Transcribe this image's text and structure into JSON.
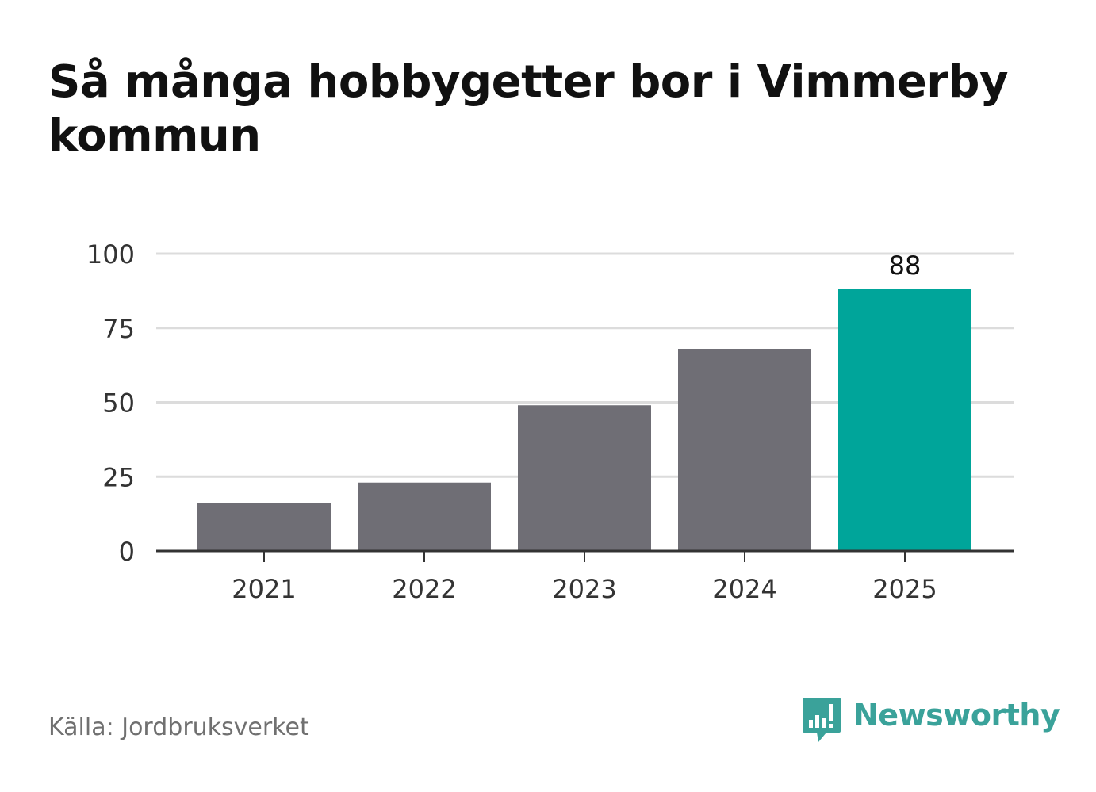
{
  "title": "Så många hobbygetter bor i Vimmerby kommun",
  "source": "Källa: Jordbruksverket",
  "brand": {
    "name": "Newsworthy",
    "icon": "newsworthy-logo-icon",
    "color": "#3aa29a"
  },
  "chart_data": {
    "type": "bar",
    "categories": [
      "2021",
      "2022",
      "2023",
      "2024",
      "2025"
    ],
    "values": [
      16,
      23,
      49,
      68,
      88
    ],
    "data_labels": [
      "",
      "",
      "",
      "",
      "88"
    ],
    "ylim": [
      0,
      100
    ],
    "yticks": [
      0,
      25,
      50,
      75,
      100
    ],
    "grid": true,
    "bar_color": "#6f6e75",
    "highlight_color": "#00a59a",
    "highlight_index": 4
  }
}
